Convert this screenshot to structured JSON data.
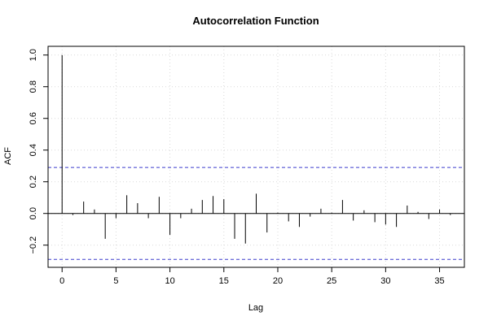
{
  "chart_data": {
    "type": "bar",
    "title": "Autocorrelation Function",
    "xlabel": "Lag",
    "ylabel": "ACF",
    "xlim": [
      -1.3,
      37.3
    ],
    "ylim": [
      -0.34,
      1.055
    ],
    "x_ticks": [
      0,
      5,
      10,
      15,
      20,
      25,
      30,
      35
    ],
    "y_ticks": [
      -0.2,
      0.0,
      0.2,
      0.4,
      0.6,
      0.8,
      1.0
    ],
    "y_tick_labels": [
      "−0.2",
      "0.0",
      "0.2",
      "0.4",
      "0.6",
      "0.8",
      "1.0"
    ],
    "x_tick_labels": [
      "0",
      "5",
      "10",
      "15",
      "20",
      "25",
      "30",
      "35"
    ],
    "grid": true,
    "zero_line": true,
    "confidence_bounds": [
      0.29,
      -0.29
    ],
    "confidence_color": "#3a3acc",
    "grid_color": "#d9d9d9",
    "lags": [
      0,
      1,
      2,
      3,
      4,
      5,
      6,
      7,
      8,
      9,
      10,
      11,
      12,
      13,
      14,
      15,
      16,
      17,
      18,
      19,
      20,
      21,
      22,
      23,
      24,
      25,
      26,
      27,
      28,
      29,
      30,
      31,
      32,
      33,
      34,
      35,
      36
    ],
    "acf": [
      1.0,
      -0.01,
      0.075,
      0.025,
      -0.16,
      -0.03,
      0.115,
      0.065,
      -0.03,
      0.105,
      -0.135,
      -0.03,
      0.03,
      0.085,
      0.11,
      0.09,
      -0.16,
      -0.19,
      0.125,
      -0.12,
      0.005,
      -0.05,
      -0.085,
      -0.02,
      0.03,
      0.005,
      0.085,
      -0.045,
      0.02,
      -0.055,
      -0.07,
      -0.085,
      0.05,
      0.01,
      -0.035,
      0.025,
      -0.01
    ]
  }
}
